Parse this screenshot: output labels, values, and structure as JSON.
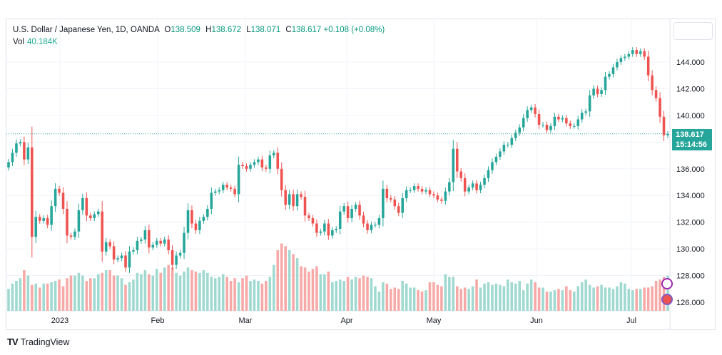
{
  "header": {
    "symbol": "U.S. Dollar / Japanese Yen, 1D, OANDA",
    "o_label": "O",
    "o_value": "138.509",
    "h_label": "H",
    "h_value": "138.672",
    "l_label": "L",
    "l_value": "138.071",
    "c_label": "C",
    "c_value": "138.617",
    "change": "+0.108 (+0.08%)",
    "vol_label": "Vol",
    "vol_value": "40.184K"
  },
  "price_label": {
    "price": "138.617",
    "countdown": "15:14:56"
  },
  "brand": {
    "name": "TradingView",
    "logo": "TV"
  },
  "colors": {
    "up": "#26a69a",
    "down": "#ef5350",
    "up_vol": "#9fd9d0",
    "down_vol": "#f7a9a7",
    "grid": "#f0f3fa"
  },
  "chart_data": {
    "type": "candlestick",
    "y_axis": {
      "ticks": [
        "126.000",
        "128.000",
        "130.000",
        "132.000",
        "134.000",
        "136.000",
        "138.000",
        "140.000",
        "142.000",
        "144.000"
      ],
      "ylim": [
        125.5,
        146.5
      ]
    },
    "x_axis": {
      "labels": [
        "2023",
        "Feb",
        "Mar",
        "Apr",
        "May",
        "Jun",
        "Jul"
      ]
    },
    "last_price": 138.617,
    "closes": [
      136.5,
      137.2,
      137.9,
      138.0,
      136.7,
      137.6,
      130.9,
      132.4,
      132.1,
      132.3,
      131.8,
      133.2,
      134.5,
      134.2,
      133.0,
      131.0,
      130.9,
      131.3,
      132.9,
      133.8,
      132.5,
      132.3,
      132.6,
      132.8,
      129.8,
      130.5,
      130.2,
      129.2,
      129.3,
      129.5,
      128.6,
      129.8,
      129.9,
      130.6,
      130.7,
      131.4,
      130.1,
      130.3,
      130.6,
      130.4,
      130.7,
      129.9,
      128.8,
      129.5,
      129.7,
      131.2,
      132.9,
      131.9,
      131.4,
      132.1,
      132.4,
      133.0,
      134.2,
      134.3,
      134.4,
      134.8,
      134.6,
      134.5,
      134.1,
      136.3,
      136.2,
      136.0,
      136.3,
      136.5,
      136.7,
      136.1,
      136.0,
      137.0,
      137.2,
      136.0,
      134.4,
      133.3,
      134.1,
      133.2,
      134.1,
      133.9,
      132.5,
      132.3,
      131.9,
      131.2,
      131.3,
      131.9,
      131.0,
      131.4,
      131.5,
      132.8,
      133.2,
      132.3,
      133.0,
      133.3,
      132.5,
      131.9,
      131.4,
      131.8,
      131.8,
      132.3,
      134.5,
      133.8,
      133.7,
      133.2,
      132.7,
      133.8,
      134.4,
      134.4,
      134.7,
      134.5,
      134.3,
      134.4,
      134.1,
      134.0,
      133.7,
      133.6,
      134.3,
      135.0,
      137.5,
      135.8,
      135.3,
      134.3,
      134.6,
      134.9,
      134.4,
      134.8,
      135.3,
      135.9,
      136.5,
      136.9,
      137.3,
      137.8,
      137.8,
      138.3,
      138.7,
      139.1,
      139.8,
      140.4,
      140.6,
      140.1,
      139.3,
      139.3,
      138.9,
      139.2,
      139.9,
      139.7,
      139.8,
      139.4,
      139.2,
      139.2,
      139.7,
      140.2,
      140.3,
      141.5,
      142.0,
      141.6,
      141.9,
      142.9,
      143.1,
      143.6,
      144.0,
      144.3,
      144.4,
      144.6,
      144.9,
      144.6,
      144.8,
      144.4,
      143.0,
      141.9,
      141.3,
      139.9,
      138.509,
      138.617
    ],
    "volumes": [
      127.0,
      127.4,
      127.6,
      127.8,
      128.4,
      128.0,
      127.3,
      127.4,
      127.1,
      127.4,
      127.4,
      127.5,
      127.6,
      127.7,
      127.2,
      127.8,
      128.0,
      128.0,
      128.2,
      128.0,
      127.6,
      127.8,
      127.8,
      128.1,
      128.2,
      128.4,
      128.4,
      128.0,
      128.0,
      127.8,
      127.3,
      127.5,
      127.7,
      128.2,
      128.1,
      128.4,
      128.1,
      128.0,
      128.5,
      128.2,
      128.6,
      128.8,
      128.6,
      128.2,
      128.0,
      128.3,
      128.6,
      128.4,
      128.3,
      128.2,
      128.4,
      128.2,
      127.9,
      127.8,
      127.9,
      128.1,
      127.9,
      127.6,
      127.8,
      127.5,
      127.8,
      128.0,
      127.6,
      127.7,
      127.6,
      127.4,
      127.6,
      127.9,
      128.8,
      129.9,
      130.4,
      130.2,
      129.9,
      129.6,
      129.3,
      128.7,
      128.6,
      128.3,
      128.5,
      128.7,
      128.1,
      128.1,
      128.3,
      127.5,
      127.6,
      127.7,
      127.6,
      127.9,
      127.7,
      127.9,
      127.8,
      128.0,
      127.9,
      127.8,
      127.2,
      126.8,
      127.5,
      127.4,
      127.0,
      127.1,
      127.0,
      127.6,
      127.4,
      127.1,
      127.1,
      126.9,
      126.8,
      126.9,
      127.5,
      127.5,
      127.3,
      127.2,
      128.1,
      127.9,
      127.9,
      127.2,
      127.0,
      127.1,
      127.0,
      127.2,
      127.7,
      127.1,
      127.4,
      127.5,
      127.3,
      127.4,
      127.3,
      127.2,
      127.7,
      127.5,
      127.4,
      127.6,
      126.9,
      127.4,
      127.7,
      127.5,
      127.1,
      127.1,
      126.8,
      126.8,
      126.9,
      127.0,
      126.9,
      127.2,
      126.9,
      126.8,
      127.2,
      127.5,
      127.7,
      127.3,
      127.1,
      127.2,
      127.3,
      127.1,
      127.1,
      127.0,
      127.2,
      127.5,
      127.4,
      127.0,
      126.9,
      127.0,
      127.0,
      127.1,
      127.1,
      127.2,
      127.6,
      127.7,
      127.9,
      128.0,
      127.7,
      127.8
    ]
  }
}
